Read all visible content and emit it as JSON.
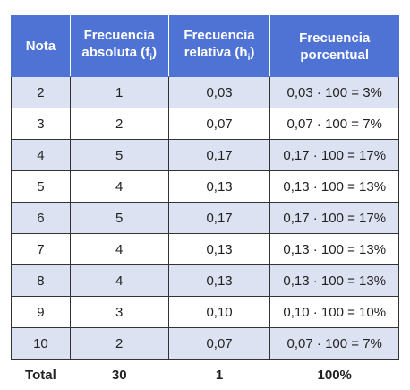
{
  "table": {
    "header": [
      {
        "text": "Nota"
      },
      {
        "text": "Frecuencia absoluta (f",
        "sub": "i",
        "close": ")"
      },
      {
        "text": "Frecuencia relativa (h",
        "sub": "i",
        "close": ")"
      },
      {
        "text": "Frecuencia porcentual"
      }
    ],
    "rows": [
      [
        "2",
        "1",
        "0,03",
        "0,03 · 100 = 3%"
      ],
      [
        "3",
        "2",
        "0,07",
        "0,07 · 100 = 7%"
      ],
      [
        "4",
        "5",
        "0,17",
        "0,17 · 100 = 17%"
      ],
      [
        "5",
        "4",
        "0,13",
        "0,13 · 100 = 13%"
      ],
      [
        "6",
        "5",
        "0,17",
        "0,17 · 100 = 17%"
      ],
      [
        "7",
        "4",
        "0,13",
        "0,13 · 100 = 13%"
      ],
      [
        "8",
        "4",
        "0,13",
        "0,13 · 100 = 13%"
      ],
      [
        "9",
        "3",
        "0,10",
        "0,10 · 100 = 10%"
      ],
      [
        "10",
        "2",
        "0,07",
        "0,07 · 100 = 7%"
      ]
    ],
    "total": [
      "Total",
      "30",
      "1",
      "100%"
    ]
  }
}
